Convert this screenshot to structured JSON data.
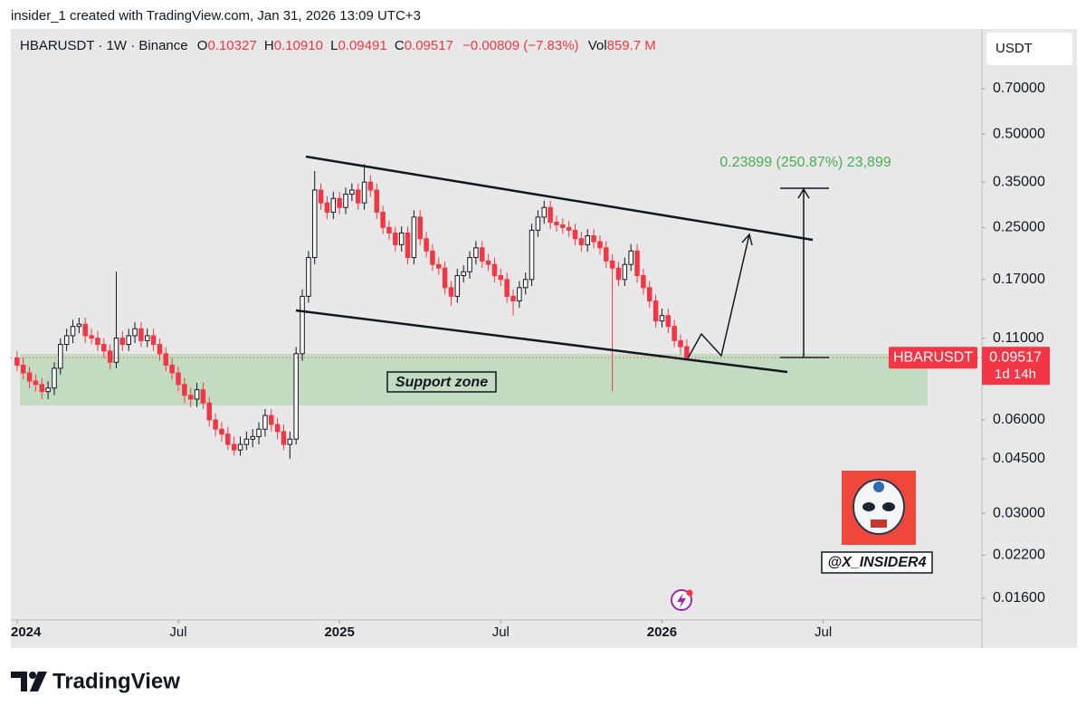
{
  "header": "insider_1 created with TradingView.com, Jan 31, 2026 13:09 UTC+3",
  "chart_data": {
    "type": "candlestick",
    "legend": {
      "symbol": "HBARUSDT · 1W · Binance",
      "items": [
        {
          "key": "O",
          "value": "0.10327"
        },
        {
          "key": "H",
          "value": "0.10910"
        },
        {
          "key": "L",
          "value": "0.09491"
        },
        {
          "key": "C",
          "value": "0.09517"
        }
      ],
      "change": "−0.00809 (−7.83%)",
      "vol_key": "Vol",
      "vol": "859.7 M"
    },
    "currency": "USDT",
    "log_scale": true,
    "up_color": "#ffffff",
    "up_border": "#131722",
    "down_color": "#f23645",
    "open": [
      0.095,
      0.09,
      0.085,
      0.08,
      0.078,
      0.074,
      0.076,
      0.088,
      0.105,
      0.112,
      0.12,
      0.122,
      0.112,
      0.11,
      0.105,
      0.1,
      0.092,
      0.11,
      0.105,
      0.112,
      0.118,
      0.108,
      0.112,
      0.105,
      0.098,
      0.09,
      0.085,
      0.078,
      0.072,
      0.07,
      0.075,
      0.068,
      0.06,
      0.056,
      0.054,
      0.05,
      0.048,
      0.05,
      0.052,
      0.053,
      0.056,
      0.062,
      0.058,
      0.055,
      0.05,
      0.052,
      0.098,
      0.15,
      0.2,
      0.33,
      0.3,
      0.28,
      0.31,
      0.29,
      0.32,
      0.33,
      0.3,
      0.35,
      0.33,
      0.28,
      0.25,
      0.24,
      0.22,
      0.24,
      0.2,
      0.27,
      0.23,
      0.21,
      0.19,
      0.185,
      0.16,
      0.15,
      0.175,
      0.18,
      0.2,
      0.215,
      0.195,
      0.19,
      0.175,
      0.17,
      0.15,
      0.145,
      0.16,
      0.17,
      0.245,
      0.27,
      0.29,
      0.26,
      0.255,
      0.25,
      0.245,
      0.23,
      0.22,
      0.235,
      0.225,
      0.215,
      0.195,
      0.185,
      0.17,
      0.19,
      0.21,
      0.175,
      0.16,
      0.145,
      0.125,
      0.13,
      0.12,
      0.108,
      0.10327
    ],
    "high": [
      0.1,
      0.095,
      0.089,
      0.084,
      0.082,
      0.08,
      0.092,
      0.11,
      0.118,
      0.126,
      0.128,
      0.128,
      0.118,
      0.116,
      0.11,
      0.105,
      0.18,
      0.116,
      0.118,
      0.124,
      0.124,
      0.118,
      0.118,
      0.11,
      0.103,
      0.095,
      0.089,
      0.082,
      0.076,
      0.079,
      0.079,
      0.071,
      0.063,
      0.059,
      0.057,
      0.053,
      0.053,
      0.055,
      0.056,
      0.059,
      0.065,
      0.065,
      0.061,
      0.058,
      0.055,
      0.103,
      0.158,
      0.21,
      0.38,
      0.347,
      0.315,
      0.326,
      0.326,
      0.336,
      0.347,
      0.347,
      0.4,
      0.368,
      0.347,
      0.294,
      0.263,
      0.252,
      0.252,
      0.252,
      0.284,
      0.284,
      0.242,
      0.221,
      0.2,
      0.194,
      0.168,
      0.184,
      0.189,
      0.21,
      0.226,
      0.226,
      0.205,
      0.2,
      0.184,
      0.179,
      0.158,
      0.168,
      0.179,
      0.257,
      0.284,
      0.305,
      0.305,
      0.273,
      0.268,
      0.263,
      0.257,
      0.242,
      0.247,
      0.247,
      0.236,
      0.226,
      0.205,
      0.194,
      0.2,
      0.221,
      0.221,
      0.184,
      0.168,
      0.152,
      0.137,
      0.137,
      0.126,
      0.113,
      0.1091
    ],
    "low": [
      0.086,
      0.081,
      0.076,
      0.074,
      0.07,
      0.07,
      0.072,
      0.084,
      0.1,
      0.106,
      0.114,
      0.106,
      0.105,
      0.1,
      0.095,
      0.087,
      0.088,
      0.1,
      0.1,
      0.106,
      0.103,
      0.103,
      0.1,
      0.093,
      0.086,
      0.081,
      0.074,
      0.068,
      0.066,
      0.066,
      0.065,
      0.057,
      0.053,
      0.051,
      0.048,
      0.046,
      0.046,
      0.048,
      0.049,
      0.05,
      0.053,
      0.055,
      0.052,
      0.048,
      0.045,
      0.05,
      0.093,
      0.143,
      0.19,
      0.285,
      0.266,
      0.266,
      0.276,
      0.276,
      0.304,
      0.285,
      0.285,
      0.314,
      0.266,
      0.238,
      0.228,
      0.209,
      0.209,
      0.19,
      0.19,
      0.219,
      0.2,
      0.181,
      0.176,
      0.152,
      0.14,
      0.143,
      0.166,
      0.171,
      0.19,
      0.185,
      0.181,
      0.166,
      0.162,
      0.143,
      0.13,
      0.138,
      0.152,
      0.162,
      0.233,
      0.257,
      0.247,
      0.242,
      0.238,
      0.233,
      0.219,
      0.209,
      0.209,
      0.214,
      0.204,
      0.185,
      0.074,
      0.162,
      0.162,
      0.181,
      0.166,
      0.152,
      0.138,
      0.119,
      0.119,
      0.114,
      0.103,
      0.098,
      0.09491
    ],
    "close": [
      0.09,
      0.085,
      0.08,
      0.078,
      0.074,
      0.076,
      0.088,
      0.105,
      0.112,
      0.12,
      0.122,
      0.112,
      0.11,
      0.105,
      0.1,
      0.092,
      0.11,
      0.105,
      0.112,
      0.118,
      0.108,
      0.112,
      0.105,
      0.098,
      0.09,
      0.085,
      0.078,
      0.072,
      0.07,
      0.075,
      0.068,
      0.06,
      0.056,
      0.054,
      0.05,
      0.048,
      0.05,
      0.052,
      0.053,
      0.056,
      0.062,
      0.058,
      0.055,
      0.05,
      0.052,
      0.098,
      0.15,
      0.2,
      0.33,
      0.3,
      0.28,
      0.31,
      0.29,
      0.32,
      0.33,
      0.3,
      0.35,
      0.33,
      0.28,
      0.25,
      0.24,
      0.22,
      0.24,
      0.2,
      0.27,
      0.23,
      0.21,
      0.19,
      0.185,
      0.16,
      0.15,
      0.175,
      0.18,
      0.2,
      0.215,
      0.195,
      0.19,
      0.175,
      0.17,
      0.15,
      0.145,
      0.16,
      0.17,
      0.245,
      0.27,
      0.29,
      0.26,
      0.255,
      0.25,
      0.245,
      0.23,
      0.22,
      0.235,
      0.225,
      0.215,
      0.195,
      0.185,
      0.17,
      0.19,
      0.21,
      0.175,
      0.16,
      0.145,
      0.125,
      0.13,
      0.12,
      0.108,
      0.10327,
      0.09517
    ],
    "ylim": [
      0.0136,
      1.09
    ],
    "yticks": [
      {
        "value": 0.7,
        "label": "0.70000"
      },
      {
        "value": 0.5,
        "label": "0.50000"
      },
      {
        "value": 0.35,
        "label": "0.35000"
      },
      {
        "value": 0.25,
        "label": "0.25000"
      },
      {
        "value": 0.17,
        "label": "0.17000"
      },
      {
        "value": 0.11,
        "label": "0.11000"
      },
      {
        "value": 0.06,
        "label": "0.06000"
      },
      {
        "value": 0.045,
        "label": "0.04500"
      },
      {
        "value": 0.03,
        "label": "0.03000"
      },
      {
        "value": 0.022,
        "label": "0.02200"
      },
      {
        "value": 0.016,
        "label": "0.01600"
      }
    ],
    "xlim": [
      -1.0,
      155.6
    ],
    "xticks": [
      {
        "value": 0,
        "label": "2024"
      },
      {
        "value": 26,
        "label": "Jul"
      },
      {
        "value": 52,
        "label": "2025"
      },
      {
        "value": 78,
        "label": "Jul"
      },
      {
        "value": 104,
        "label": "2026"
      },
      {
        "value": 130,
        "label": "Jul"
      }
    ],
    "last_price": {
      "symbol": "HBARUSDT",
      "value": 0.09517,
      "countdown": "1d 14h"
    },
    "annotations": {
      "measure": "0.23899 (250.87%) 23,899",
      "support": "Support zone",
      "handle": "@X_INSIDER4"
    }
  },
  "footer": "TradingView"
}
